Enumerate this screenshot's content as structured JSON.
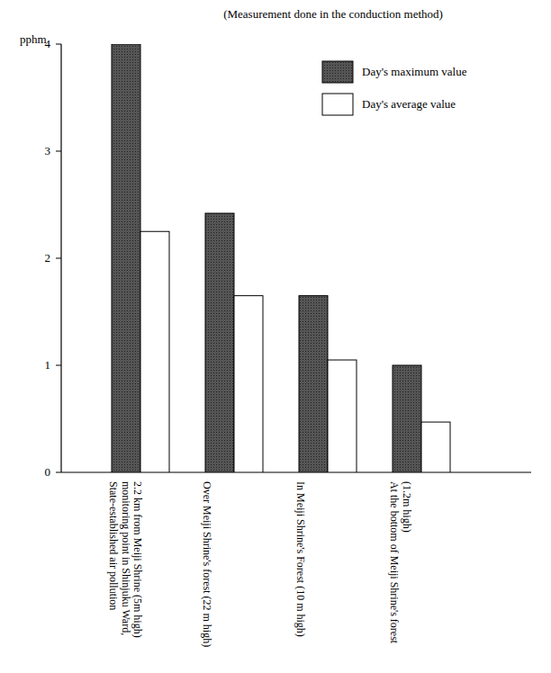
{
  "chart_data": {
    "type": "bar",
    "title": "(Measurement done in the conduction method)",
    "y_label": "pphm",
    "categories": [
      "State-established air pollution monitoring point in Shinjuku Ward, 2.2 km from Meiji Shrine (5m high)",
      "Over Meiji Shrine's forest (22 m high)",
      "In Meiji Shrine's Forest (10 m high)",
      "At the bottom of Meiji Shrine's forest (1.2m high)"
    ],
    "series": [
      {
        "name": "Day's maximum value",
        "color": "#555555",
        "values": [
          4.0,
          2.42,
          1.65,
          1.0
        ]
      },
      {
        "name": "Day's average value",
        "color": "#ffffff",
        "values": [
          2.25,
          1.65,
          1.05,
          0.47
        ]
      }
    ],
    "ylim": [
      0,
      4
    ],
    "yticks": [
      0,
      1,
      2,
      3,
      4
    ],
    "grid": false,
    "legend": "upper right"
  }
}
